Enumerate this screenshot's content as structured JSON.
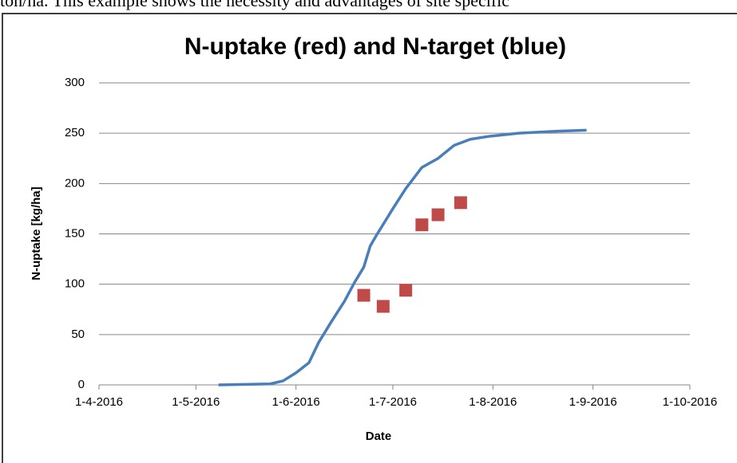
{
  "doc_text": "ton/ha. This example shows the necessity and advantages of site specific",
  "chart_data": {
    "type": "line",
    "title": "N-uptake (red) and N-target (blue)",
    "xlabel": "Date",
    "ylabel": "N-uptake [kg/ha]",
    "xlim": [
      "2016-04-01",
      "2016-10-01"
    ],
    "xticks": [
      {
        "value": "2016-04-01",
        "label": "1-4-2016"
      },
      {
        "value": "2016-05-01",
        "label": "1-5-2016"
      },
      {
        "value": "2016-06-01",
        "label": "1-6-2016"
      },
      {
        "value": "2016-07-01",
        "label": "1-7-2016"
      },
      {
        "value": "2016-08-01",
        "label": "1-8-2016"
      },
      {
        "value": "2016-09-01",
        "label": "1-9-2016"
      },
      {
        "value": "2016-10-01",
        "label": "1-10-2016"
      }
    ],
    "ylim": [
      0,
      300
    ],
    "yticks": [
      0,
      50,
      100,
      150,
      200,
      250,
      300
    ],
    "grid": true,
    "series": [
      {
        "type": "line",
        "color": "#4a7ebb",
        "x": [
          "2016-05-08",
          "2016-05-24",
          "2016-05-28",
          "2016-06-01",
          "2016-06-05",
          "2016-06-08",
          "2016-06-12",
          "2016-06-16",
          "2016-06-19",
          "2016-06-22",
          "2016-06-24",
          "2016-06-26",
          "2016-07-01",
          "2016-07-05",
          "2016-07-10",
          "2016-07-15",
          "2016-07-20",
          "2016-07-25",
          "2016-07-31",
          "2016-08-09",
          "2016-08-21",
          "2016-08-30"
        ],
        "values": [
          0,
          1,
          4,
          12,
          22,
          42,
          63,
          83,
          101,
          117,
          138,
          149,
          175,
          195,
          216,
          225,
          238,
          244,
          247,
          250,
          252,
          253
        ]
      },
      {
        "type": "scatter",
        "color": "#be4b48",
        "x": [
          "2016-06-22",
          "2016-06-28",
          "2016-07-05",
          "2016-07-10",
          "2016-07-15",
          "2016-07-22"
        ],
        "values": [
          89,
          78,
          94,
          159,
          169,
          181
        ]
      }
    ]
  }
}
